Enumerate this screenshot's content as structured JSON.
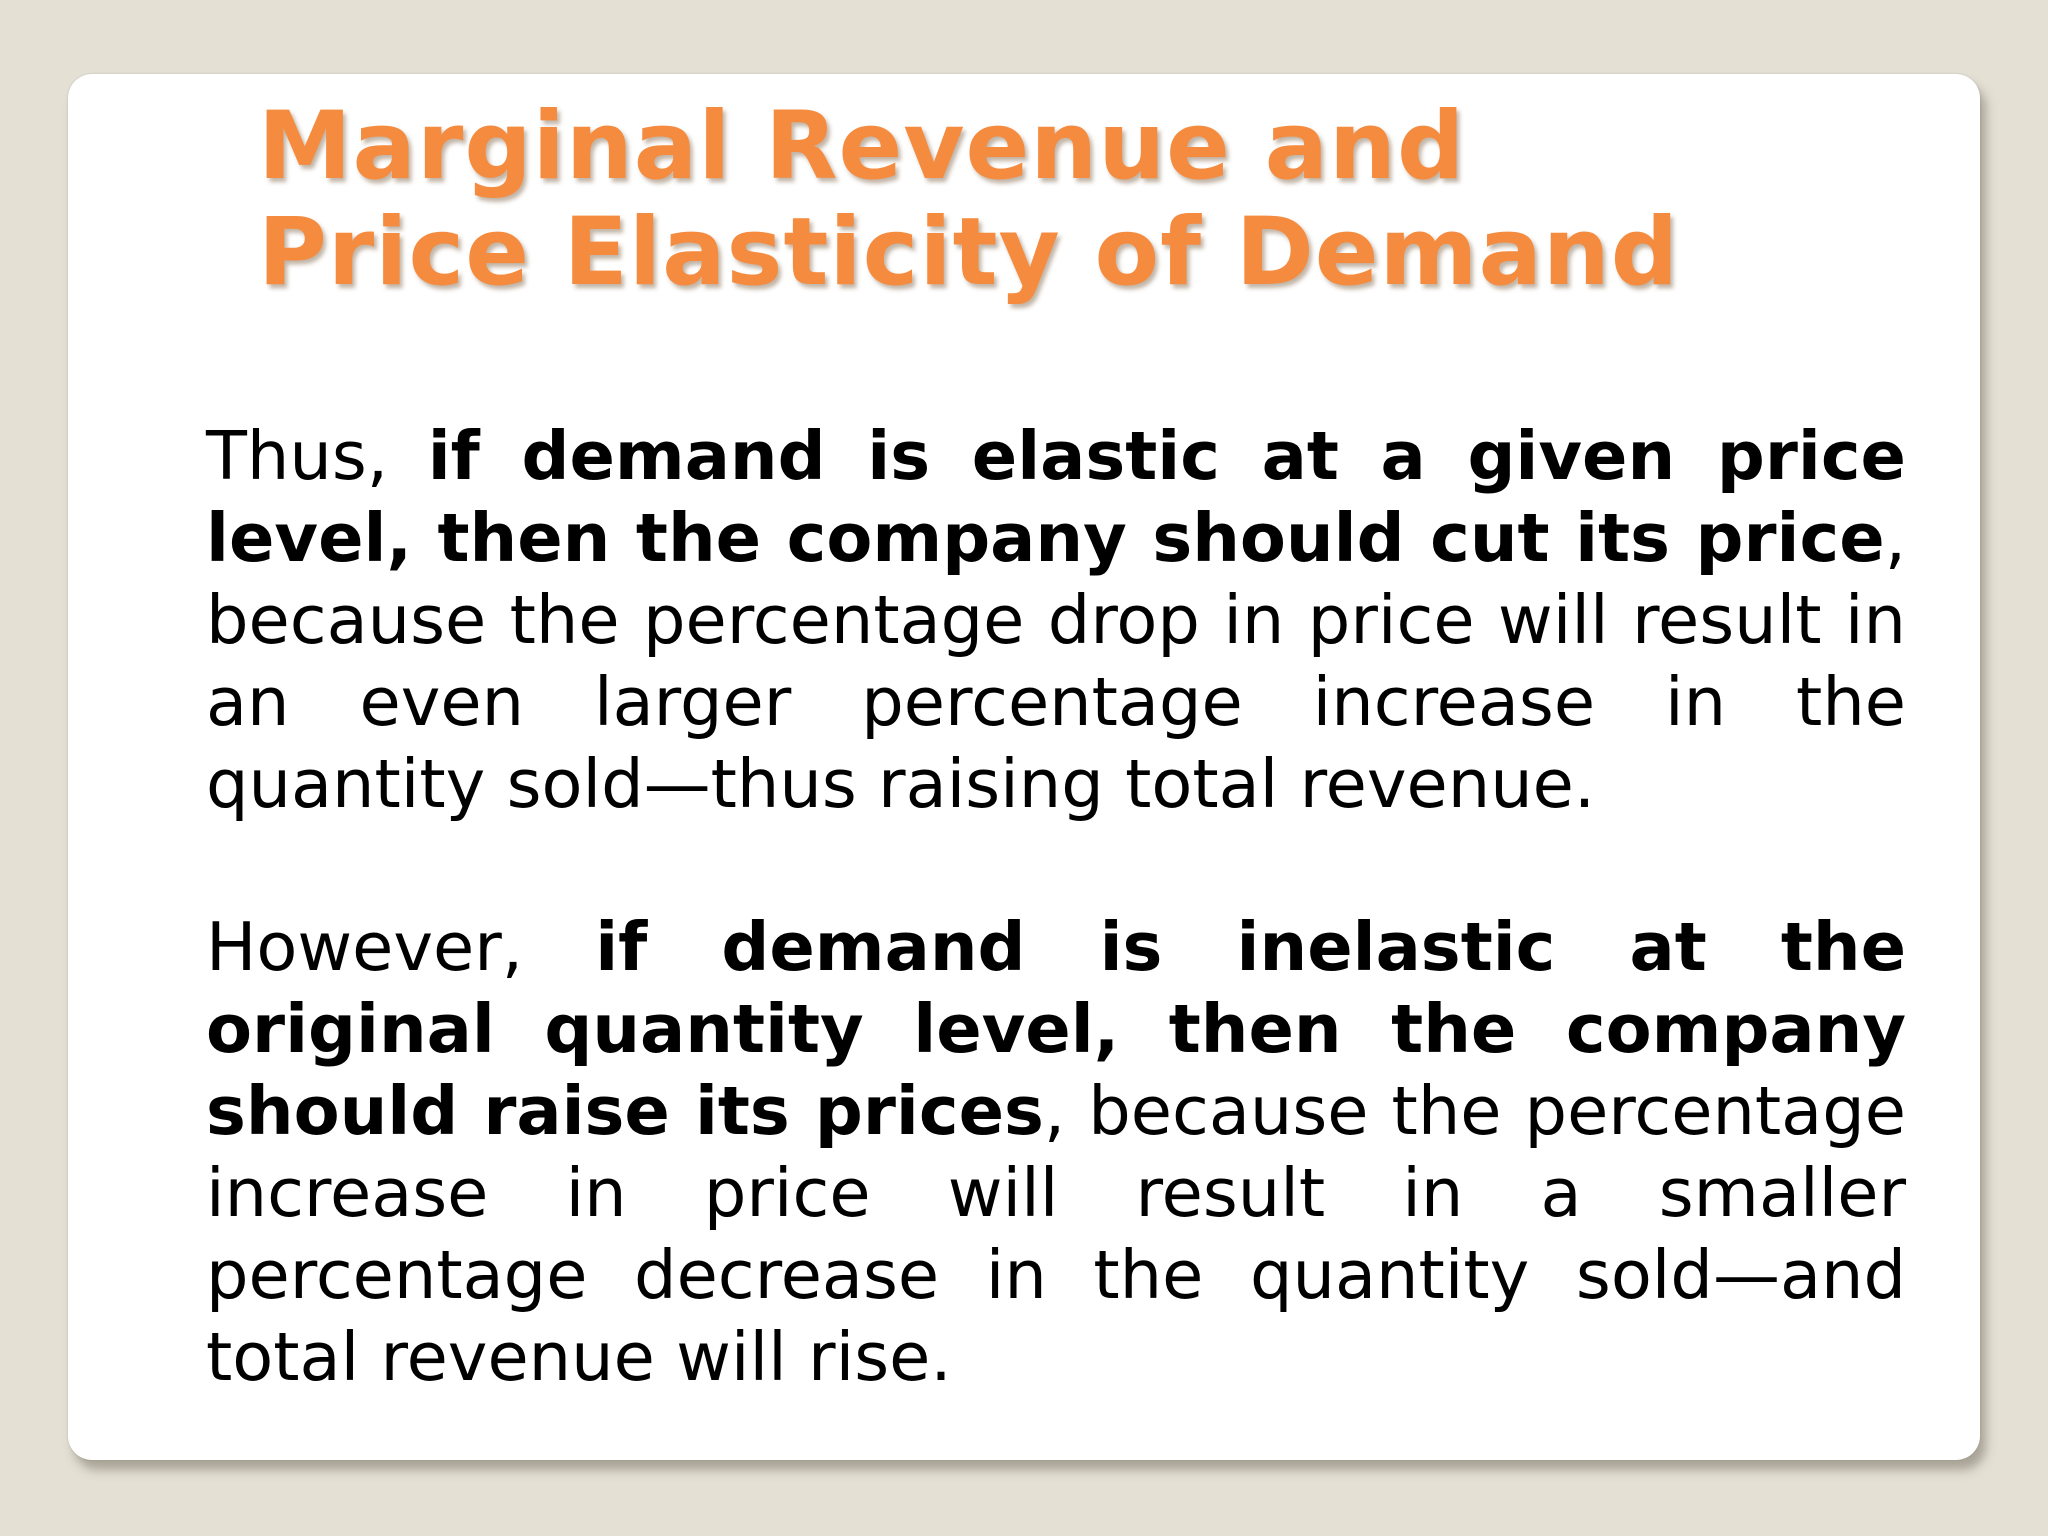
{
  "slide": {
    "title_line_1": "Marginal Revenue and",
    "title_line_2": "Price Elasticity of Demand",
    "colors": {
      "title": "#f58b3f",
      "background": "#e4e0d4",
      "card": "#ffffff",
      "text": "#000000"
    },
    "paragraph_1": {
      "lead": "Thus, ",
      "bold": "if demand is elastic at a given price level, then the company should cut its price",
      "rest": ", because the percentage drop in price will result in an even larger percentage increase in the quantity sold—thus raising total revenue."
    },
    "paragraph_2": {
      "lead": "However, ",
      "bold": "if demand is inelastic at the original quantity level, then the company should raise its prices",
      "rest": ", because the percentage increase in price will result in a smaller percentage decrease in the quantity sold—and total revenue will rise."
    }
  }
}
